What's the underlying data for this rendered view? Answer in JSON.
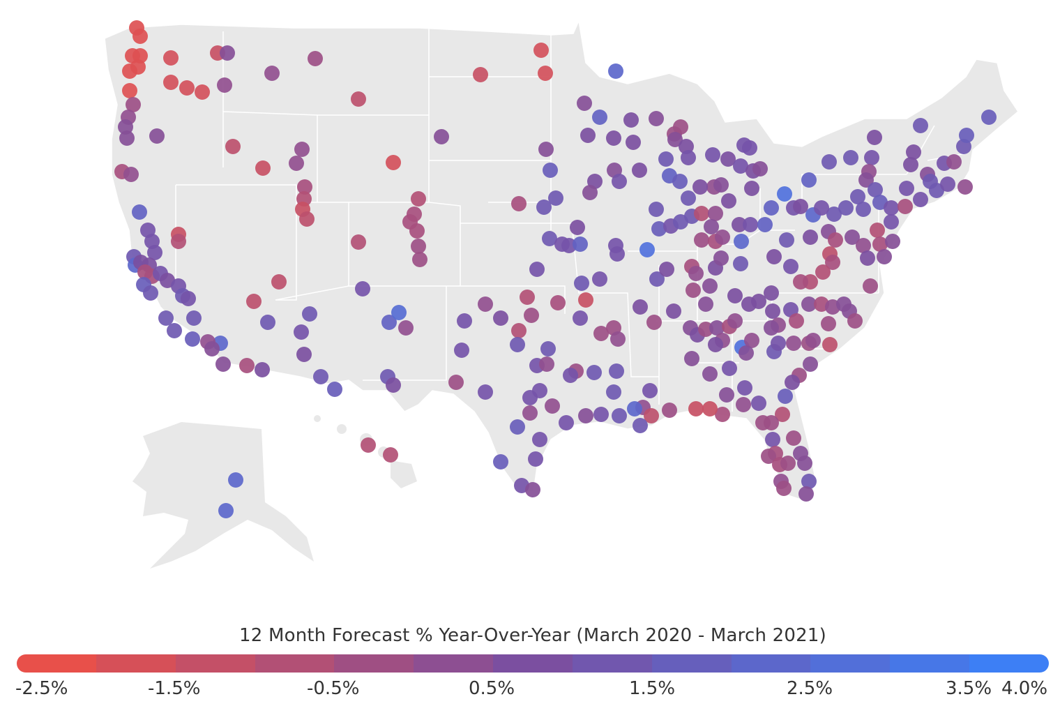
{
  "legend": {
    "title": "12 Month Forecast % Year-Over-Year (March 2020 - March 2021)",
    "min_value": -2.5,
    "max_value": 4.0,
    "tick_labels": [
      "-2.5%",
      "-1.5%",
      "-0.5%",
      "0.5%",
      "1.5%",
      "2.5%",
      "3.5%",
      "4.0%"
    ],
    "color_low": "#e8504a",
    "color_mid": "#7b4fa0",
    "color_high": "#3d7ff5"
  },
  "colors": {
    "land": "#e8e8e8",
    "state_border": "#ffffff",
    "text": "#333333"
  },
  "map": {
    "region": "United States (with Alaska and Hawaii insets)",
    "marker_count_estimate": 430
  }
}
